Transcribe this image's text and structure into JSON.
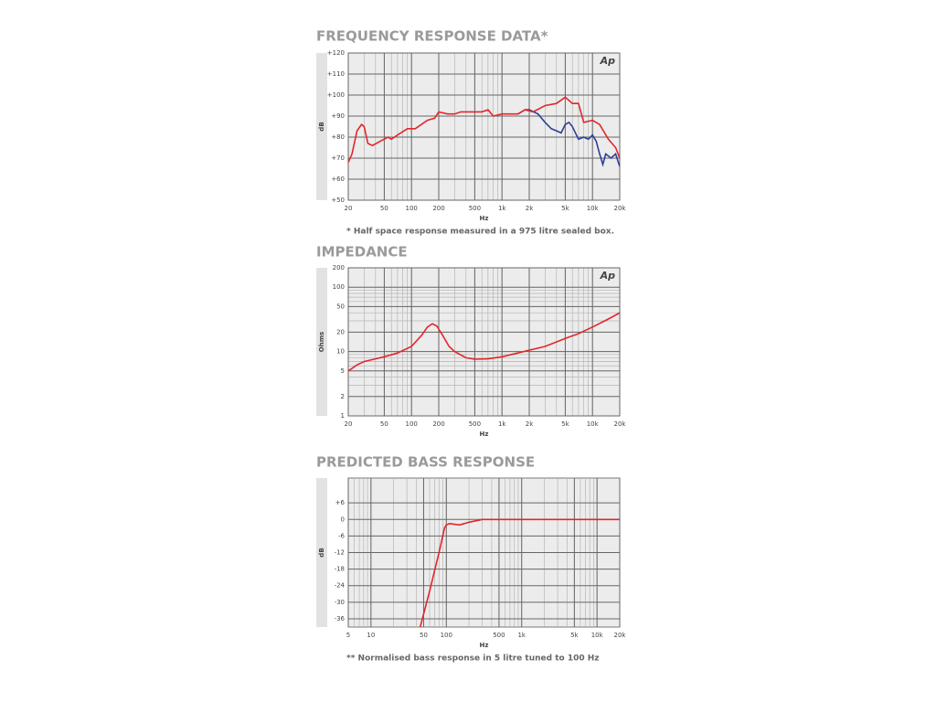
{
  "chart_data": [
    {
      "type": "line",
      "title": "FREQUENCY RESPONSE DATA*",
      "xlabel": "Hz",
      "ylabel": "dB",
      "logo": "Ap",
      "note": "* Half space response measured in a 975 litre sealed box.",
      "xlog": true,
      "ylog": false,
      "grid": true,
      "xlim": [
        20,
        20000
      ],
      "xticks": [
        20,
        50,
        100,
        200,
        500,
        {
          "value": 1000,
          "label": "1k"
        },
        {
          "value": 2000,
          "label": "2k"
        },
        {
          "value": 5000,
          "label": "5k"
        },
        {
          "value": 10000,
          "label": "10k"
        },
        {
          "value": 20000,
          "label": "20k"
        }
      ],
      "ylim": [
        50,
        120
      ],
      "yticks": [
        {
          "value": 50,
          "label": "+50"
        },
        {
          "value": 60,
          "label": "+60"
        },
        {
          "value": 70,
          "label": "+70"
        },
        {
          "value": 80,
          "label": "+80"
        },
        {
          "value": 90,
          "label": "+90"
        },
        {
          "value": 100,
          "label": "+100"
        },
        {
          "value": 110,
          "label": "+110"
        },
        {
          "value": 120,
          "label": "+120"
        }
      ],
      "series": [
        {
          "color": "#2e3f95",
          "x": [
            1500,
            1800,
            2000,
            2500,
            3000,
            3500,
            4000,
            4500,
            5000,
            5500,
            6000,
            7000,
            8000,
            9000,
            10000,
            11000,
            12000,
            13000,
            14000,
            16000,
            18000,
            20000
          ],
          "values": [
            91,
            93,
            93,
            91,
            87,
            84,
            83,
            82,
            86,
            87,
            85,
            79,
            80,
            79,
            81,
            78,
            72,
            67,
            72,
            70,
            72,
            66
          ]
        },
        {
          "color": "#e3262b",
          "x": [
            20,
            22,
            25,
            28,
            30,
            33,
            37,
            45,
            55,
            60,
            70,
            90,
            110,
            150,
            180,
            200,
            250,
            300,
            350,
            500,
            600,
            700,
            800,
            1000,
            1500,
            1800,
            2200,
            3000,
            4000,
            5000,
            6000,
            7000,
            8000,
            10000,
            12000,
            15000,
            18000,
            20000
          ],
          "values": [
            68,
            72,
            83,
            86,
            85,
            77,
            76,
            78,
            80,
            79,
            81,
            84,
            84,
            88,
            89,
            92,
            91,
            91,
            92,
            92,
            92,
            93,
            90,
            91,
            91,
            93,
            92,
            95,
            96,
            99,
            96,
            96,
            87,
            88,
            86,
            79,
            75,
            70
          ]
        }
      ]
    },
    {
      "type": "line",
      "title": "IMPEDANCE",
      "xlabel": "Hz",
      "ylabel": "Ohms",
      "logo": "Ap",
      "xlog": true,
      "ylog": true,
      "grid": true,
      "xlim": [
        20,
        20000
      ],
      "xticks": [
        20,
        50,
        100,
        200,
        500,
        {
          "value": 1000,
          "label": "1k"
        },
        {
          "value": 2000,
          "label": "2k"
        },
        {
          "value": 5000,
          "label": "5k"
        },
        {
          "value": 10000,
          "label": "10k"
        },
        {
          "value": 20000,
          "label": "20k"
        }
      ],
      "ylim": [
        1,
        200
      ],
      "yticks": [
        1,
        2,
        5,
        10,
        20,
        50,
        100,
        200
      ],
      "series": [
        {
          "color": "#e3262b",
          "x": [
            20,
            25,
            30,
            40,
            50,
            70,
            100,
            130,
            150,
            170,
            190,
            220,
            260,
            300,
            400,
            500,
            700,
            1000,
            1500,
            2000,
            3000,
            5000,
            7000,
            10000,
            15000,
            20000
          ],
          "values": [
            5,
            6.2,
            7,
            7.7,
            8.3,
            9.5,
            12,
            18,
            24,
            27,
            25,
            18,
            12,
            10,
            8,
            7.6,
            7.7,
            8.3,
            9.5,
            10.5,
            12,
            16,
            19,
            24,
            32,
            40
          ]
        }
      ]
    },
    {
      "type": "line",
      "title": "PREDICTED BASS RESPONSE",
      "xlabel": "Hz",
      "ylabel": "dB",
      "note": "** Normalised bass response in 5 litre tuned to 100 Hz",
      "xlog": true,
      "ylog": false,
      "grid": true,
      "xlim": [
        5,
        20000
      ],
      "xticks": [
        5,
        10,
        50,
        100,
        500,
        {
          "value": 1000,
          "label": "1k"
        },
        {
          "value": 5000,
          "label": "5k"
        },
        {
          "value": 10000,
          "label": "10k"
        },
        {
          "value": 20000,
          "label": "20k"
        }
      ],
      "ylim": [
        -39,
        15
      ],
      "yticks": [
        {
          "value": 6,
          "label": "+6"
        },
        0,
        -6,
        -12,
        -18,
        -24,
        -30,
        -36
      ],
      "series": [
        {
          "color": "#e3262b",
          "x": [
            45,
            60,
            80,
            95,
            100,
            110,
            150,
            200,
            300,
            20000
          ],
          "values": [
            -39,
            -26,
            -12,
            -3,
            -2,
            -1.5,
            -2,
            -1,
            0,
            0
          ]
        }
      ]
    }
  ]
}
